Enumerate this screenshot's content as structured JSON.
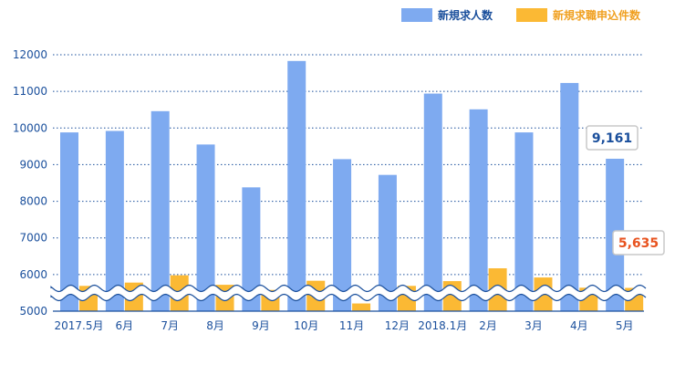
{
  "chart_data": {
    "type": "bar",
    "categories": [
      "2017.5月",
      "6月",
      "7月",
      "8月",
      "9月",
      "10月",
      "11月",
      "12月",
      "2018.1月",
      "2月",
      "3月",
      "4月",
      "5月"
    ],
    "series": [
      {
        "name": "新規求人数",
        "color": "#7eaaf0",
        "values": [
          9880,
          9920,
          10460,
          9550,
          8380,
          11830,
          9150,
          8720,
          10940,
          10510,
          9880,
          11230,
          9161
        ]
      },
      {
        "name": "新規求職申込件数",
        "color": "#fbb934",
        "values": [
          5690,
          5780,
          5980,
          5720,
          5580,
          5830,
          5210,
          5690,
          5820,
          6170,
          5920,
          5640,
          5635
        ]
      }
    ],
    "yticks": [
      5000,
      6000,
      7000,
      8000,
      9000,
      10000,
      11000,
      12000
    ],
    "ylim": [
      5000,
      12000
    ],
    "axis_break": true,
    "legend_position": "top-right",
    "grid": "dotted-horizontal",
    "annotations": [
      {
        "text": "9,161",
        "series": 0,
        "category": 12,
        "color": "#1a4f9c"
      },
      {
        "text": "5,635",
        "series": 1,
        "category": 12,
        "color": "#e8531f"
      }
    ]
  }
}
